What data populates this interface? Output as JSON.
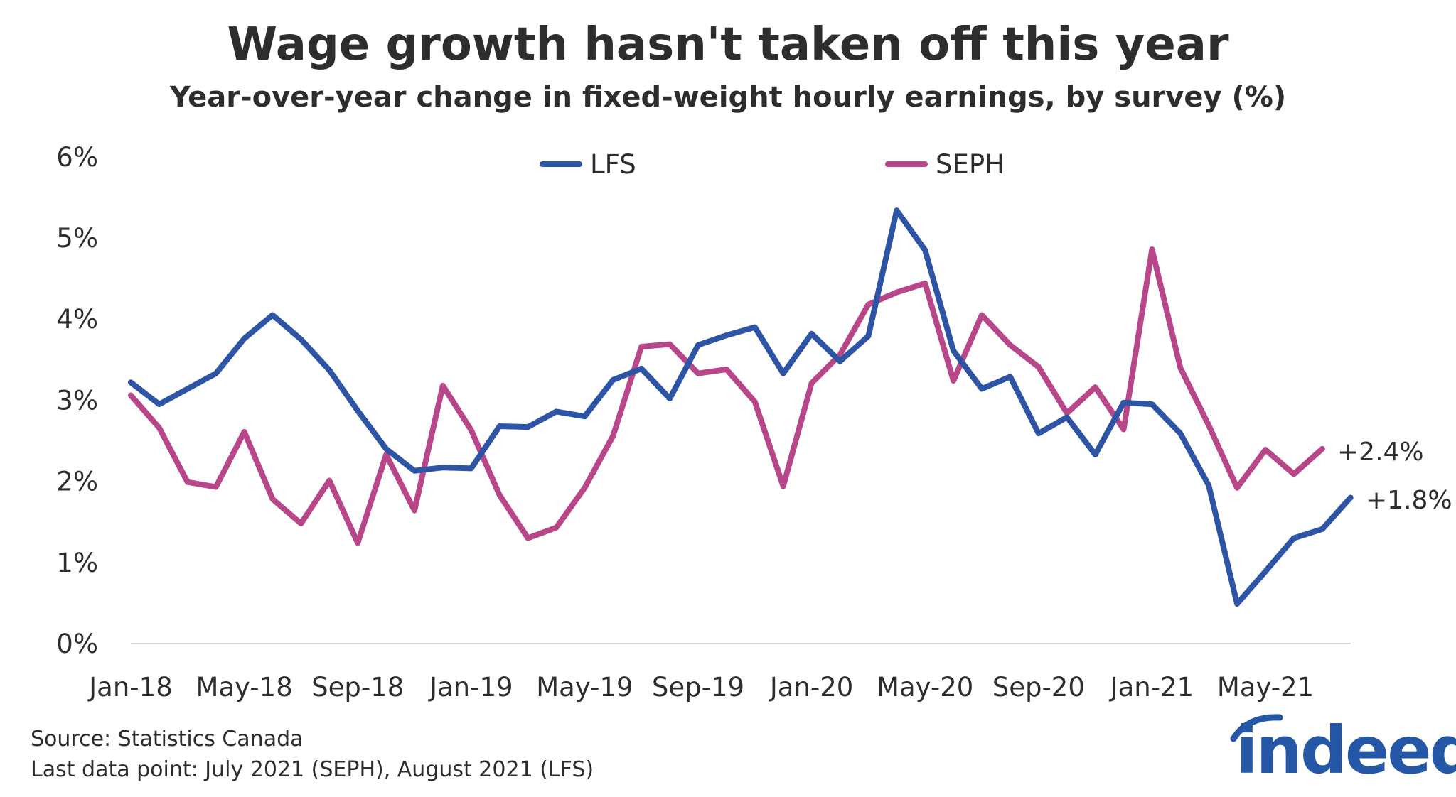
{
  "chart_data": {
    "type": "line",
    "title": "Wage growth hasn't taken off this year",
    "subtitle": "Year-over-year change in fixed-weight hourly earnings, by survey (%)",
    "xlabel": "",
    "ylabel": "",
    "ylim": [
      0,
      6
    ],
    "yticks": [
      "0%",
      "1%",
      "2%",
      "3%",
      "4%",
      "5%",
      "6%"
    ],
    "xtick_labels": [
      "Jan-18",
      "May-18",
      "Sep-18",
      "Jan-19",
      "May-19",
      "Sep-19",
      "Jan-20",
      "May-20",
      "Sep-20",
      "Jan-21",
      "May-21"
    ],
    "x_start": "Jan-18",
    "grid": false,
    "legend_position": "top-center",
    "series": [
      {
        "name": "LFS",
        "color": "#2e55a5",
        "end_label": "+1.8%",
        "values": [
          3.22,
          2.95,
          3.14,
          3.33,
          3.76,
          4.05,
          3.75,
          3.37,
          2.87,
          2.4,
          2.13,
          2.17,
          2.16,
          2.68,
          2.67,
          2.86,
          2.8,
          3.25,
          3.39,
          3.02,
          3.68,
          3.8,
          3.9,
          3.33,
          3.82,
          3.48,
          3.79,
          5.34,
          4.85,
          3.61,
          3.14,
          3.29,
          2.59,
          2.79,
          2.33,
          2.97,
          2.95,
          2.59,
          1.95,
          0.49,
          0.89,
          1.3,
          1.41,
          1.8
        ]
      },
      {
        "name": "SEPH",
        "color": "#b8478a",
        "end_label": "+2.4%",
        "values": [
          3.06,
          2.66,
          1.99,
          1.93,
          2.61,
          1.78,
          1.48,
          2.01,
          1.24,
          2.33,
          1.64,
          3.18,
          2.63,
          1.83,
          1.3,
          1.43,
          1.92,
          2.56,
          3.66,
          3.69,
          3.33,
          3.38,
          2.98,
          1.94,
          3.21,
          3.56,
          4.18,
          4.33,
          4.44,
          3.24,
          4.05,
          3.68,
          3.41,
          2.84,
          3.16,
          2.64,
          4.86,
          3.4,
          2.69,
          1.92,
          2.39,
          2.09,
          2.4
        ]
      }
    ]
  },
  "footer": {
    "source": "Source: Statistics Canada",
    "last_point": "Last data point: July 2021 (SEPH), August 2021 (LFS)",
    "logo_text": "indeed",
    "logo_color": "#2557a7"
  }
}
